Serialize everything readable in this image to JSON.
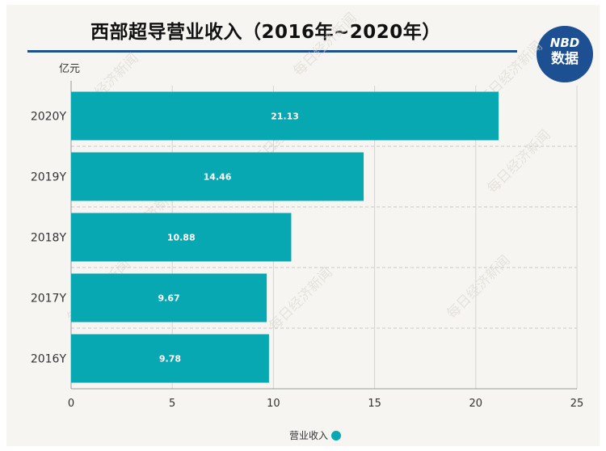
{
  "header": {
    "title": "西部超导营业收入（2016年~2020年）"
  },
  "logo": {
    "top": "NBD",
    "bottom": "数据"
  },
  "watermark_text": "每日经济新闻",
  "colors": {
    "bar": "#08a8b3",
    "title_rule": "#1d4f93",
    "logo_bg": "#1d4f93"
  },
  "chart_data": {
    "type": "bar",
    "orientation": "horizontal",
    "title": "西部超导营业收入（2016年~2020年）",
    "unit_label": "亿元",
    "categories": [
      "2020Y",
      "2019Y",
      "2018Y",
      "2017Y",
      "2016Y"
    ],
    "series": [
      {
        "name": "营业收入",
        "values": [
          21.13,
          14.46,
          10.88,
          9.67,
          9.78
        ],
        "data_labels": [
          "21.13",
          "14.46",
          "10.88",
          "9.67",
          "9.78"
        ]
      }
    ],
    "xlim": [
      0,
      25
    ],
    "xticks": [
      "0",
      "5",
      "10",
      "15",
      "20",
      "25"
    ],
    "grid": "vertical solid, horizontal dashed",
    "legend_position": "bottom-center"
  }
}
